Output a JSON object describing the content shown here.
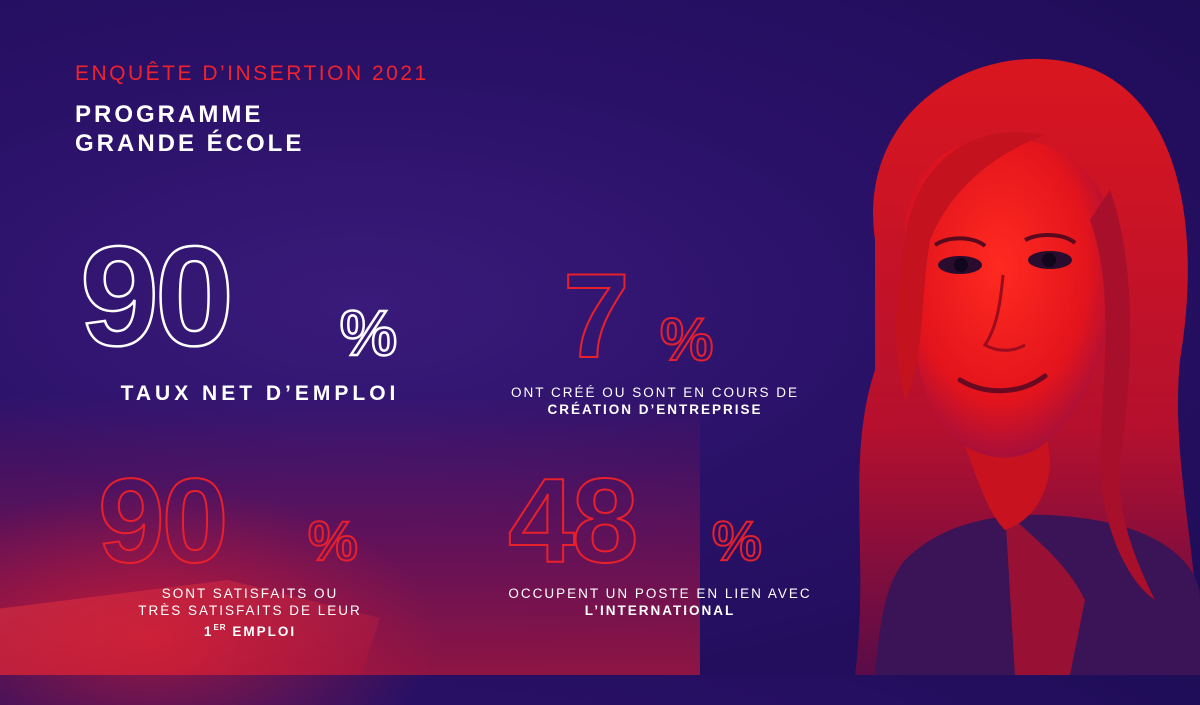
{
  "header": {
    "kicker": "ENQUÊTE D’INSERTION 2021",
    "title_line1": "PROGRAMME",
    "title_line2": "GRANDE ÉCOLE"
  },
  "stats": [
    {
      "value": "90",
      "unit": "%",
      "label": "TAUX NET D’EMPLOI",
      "color": "#ffffff"
    },
    {
      "value": "7",
      "unit": "%",
      "label_line1": "ONT CRÉÉ OU SONT EN COURS DE",
      "label_line2": "CRÉATION D’ENTREPRISE",
      "color": "#e8202b"
    },
    {
      "value": "90",
      "unit": "%",
      "label_line1": "SONT SATISFAITS OU",
      "label_line2": "TRÈS SATISFAITS DE LEUR",
      "label_line3_num": "1",
      "label_line3_sup": "ER",
      "label_line3_rest": " EMPLOI",
      "color": "#e8202b"
    },
    {
      "value": "48",
      "unit": "%",
      "label_line1": "OCCUPENT UN POSTE EN LIEN AVEC",
      "label_line2": "L’INTERNATIONAL",
      "color": "#e8202b"
    }
  ],
  "colors": {
    "background": "#2a1168",
    "accent_red": "#e8202b",
    "text_white": "#ffffff"
  }
}
